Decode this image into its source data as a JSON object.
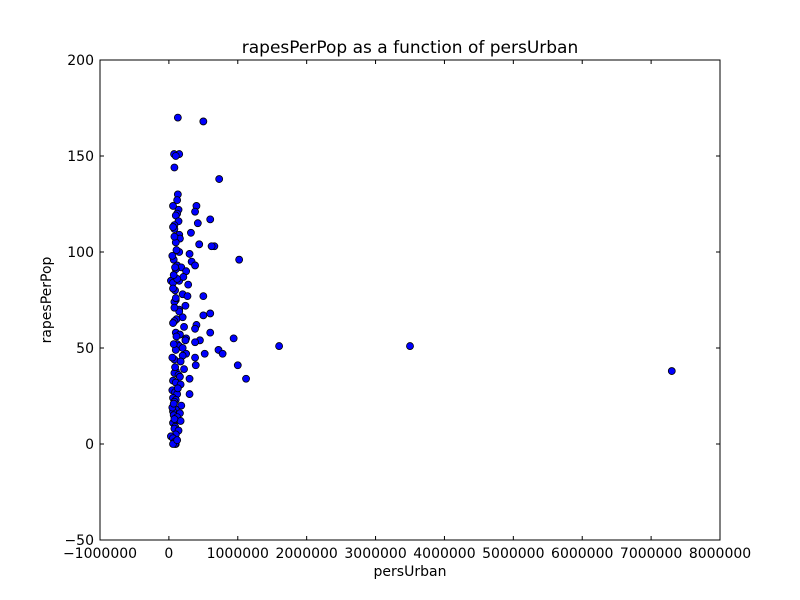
{
  "chart_data": {
    "type": "scatter",
    "title": "rapesPerPop as a function of persUrban",
    "xlabel": "persUrban",
    "ylabel": "rapesPerPop",
    "xlim": [
      -1000000,
      8000000
    ],
    "ylim": [
      -50,
      200
    ],
    "xticks": [
      -1000000,
      0,
      1000000,
      2000000,
      3000000,
      4000000,
      5000000,
      6000000,
      7000000,
      8000000
    ],
    "xtick_labels": [
      "−1000000",
      "0",
      "1000000",
      "2000000",
      "3000000",
      "4000000",
      "5000000",
      "6000000",
      "7000000",
      "8000000"
    ],
    "yticks": [
      -50,
      0,
      50,
      100,
      150,
      200
    ],
    "ytick_labels": [
      "−50",
      "0",
      "50",
      "100",
      "150",
      "200"
    ],
    "grid": false,
    "legend": "none",
    "marker_color": "#0000ff",
    "marker_edge_color": "#000000",
    "x": [
      130000,
      500000,
      75000,
      150000,
      100000,
      730000,
      80000,
      130000,
      120000,
      140000,
      60000,
      120000,
      100000,
      140000,
      400000,
      80000,
      380000,
      600000,
      150000,
      420000,
      80000,
      320000,
      160000,
      100000,
      1020000,
      660000,
      620000,
      150000,
      300000,
      440000,
      70000,
      330000,
      380000,
      120000,
      180000,
      250000,
      100000,
      30000,
      60000,
      150000,
      210000,
      280000,
      500000,
      90000,
      100000,
      200000,
      270000,
      240000,
      80000,
      150000,
      600000,
      500000,
      200000,
      110000,
      80000,
      400000,
      220000,
      380000,
      100000,
      160000,
      250000,
      600000,
      940000,
      240000,
      450000,
      120000,
      150000,
      380000,
      200000,
      1600000,
      3500000,
      100000,
      720000,
      780000,
      250000,
      200000,
      380000,
      80000,
      520000,
      170000,
      390000,
      220000,
      300000,
      100000,
      80000,
      1000000,
      7300000,
      140000,
      1120000,
      60000,
      100000,
      170000,
      50000,
      90000,
      120000,
      60000,
      100000,
      80000,
      180000,
      300000,
      100000,
      60000,
      160000,
      70000,
      120000,
      90000,
      170000,
      60000,
      90000,
      80000,
      140000,
      100000,
      30000,
      60000,
      80000,
      100000,
      90000,
      60000,
      120000,
      80000,
      50000,
      70000,
      130000,
      160000,
      90000,
      50000,
      70000,
      110000,
      60000,
      150000,
      80000,
      100000,
      60000,
      120000,
      70000,
      90000,
      50000,
      110000,
      80000,
      60000
    ],
    "y": [
      170,
      168,
      151,
      151,
      150,
      138,
      144,
      130,
      127,
      122,
      124,
      120,
      119,
      116,
      124,
      114,
      121,
      117,
      109,
      115,
      112,
      110,
      107,
      105,
      96,
      103,
      103,
      100,
      99,
      104,
      96,
      95,
      93,
      93,
      92,
      90,
      91,
      85,
      84,
      85,
      87,
      83,
      77,
      80,
      75,
      78,
      77,
      72,
      74,
      70,
      68,
      67,
      66,
      65,
      64,
      62,
      61,
      60,
      58,
      57,
      55,
      58,
      55,
      54,
      54,
      52,
      51,
      53,
      50,
      51,
      51,
      49,
      49,
      47,
      47,
      46,
      45,
      44,
      47,
      43,
      41,
      39,
      34,
      38,
      37,
      41,
      38,
      36,
      34,
      33,
      32,
      31,
      28,
      27,
      26,
      24,
      23,
      22,
      20,
      26,
      18,
      17,
      16,
      15,
      14,
      12,
      12,
      11,
      9,
      8,
      7,
      5,
      4,
      3,
      1,
      0,
      0,
      0,
      2,
      13,
      19,
      21,
      29,
      35,
      40,
      45,
      52,
      56,
      63,
      69,
      71,
      76,
      81,
      86,
      88,
      92,
      98,
      101,
      108,
      113
    ]
  }
}
